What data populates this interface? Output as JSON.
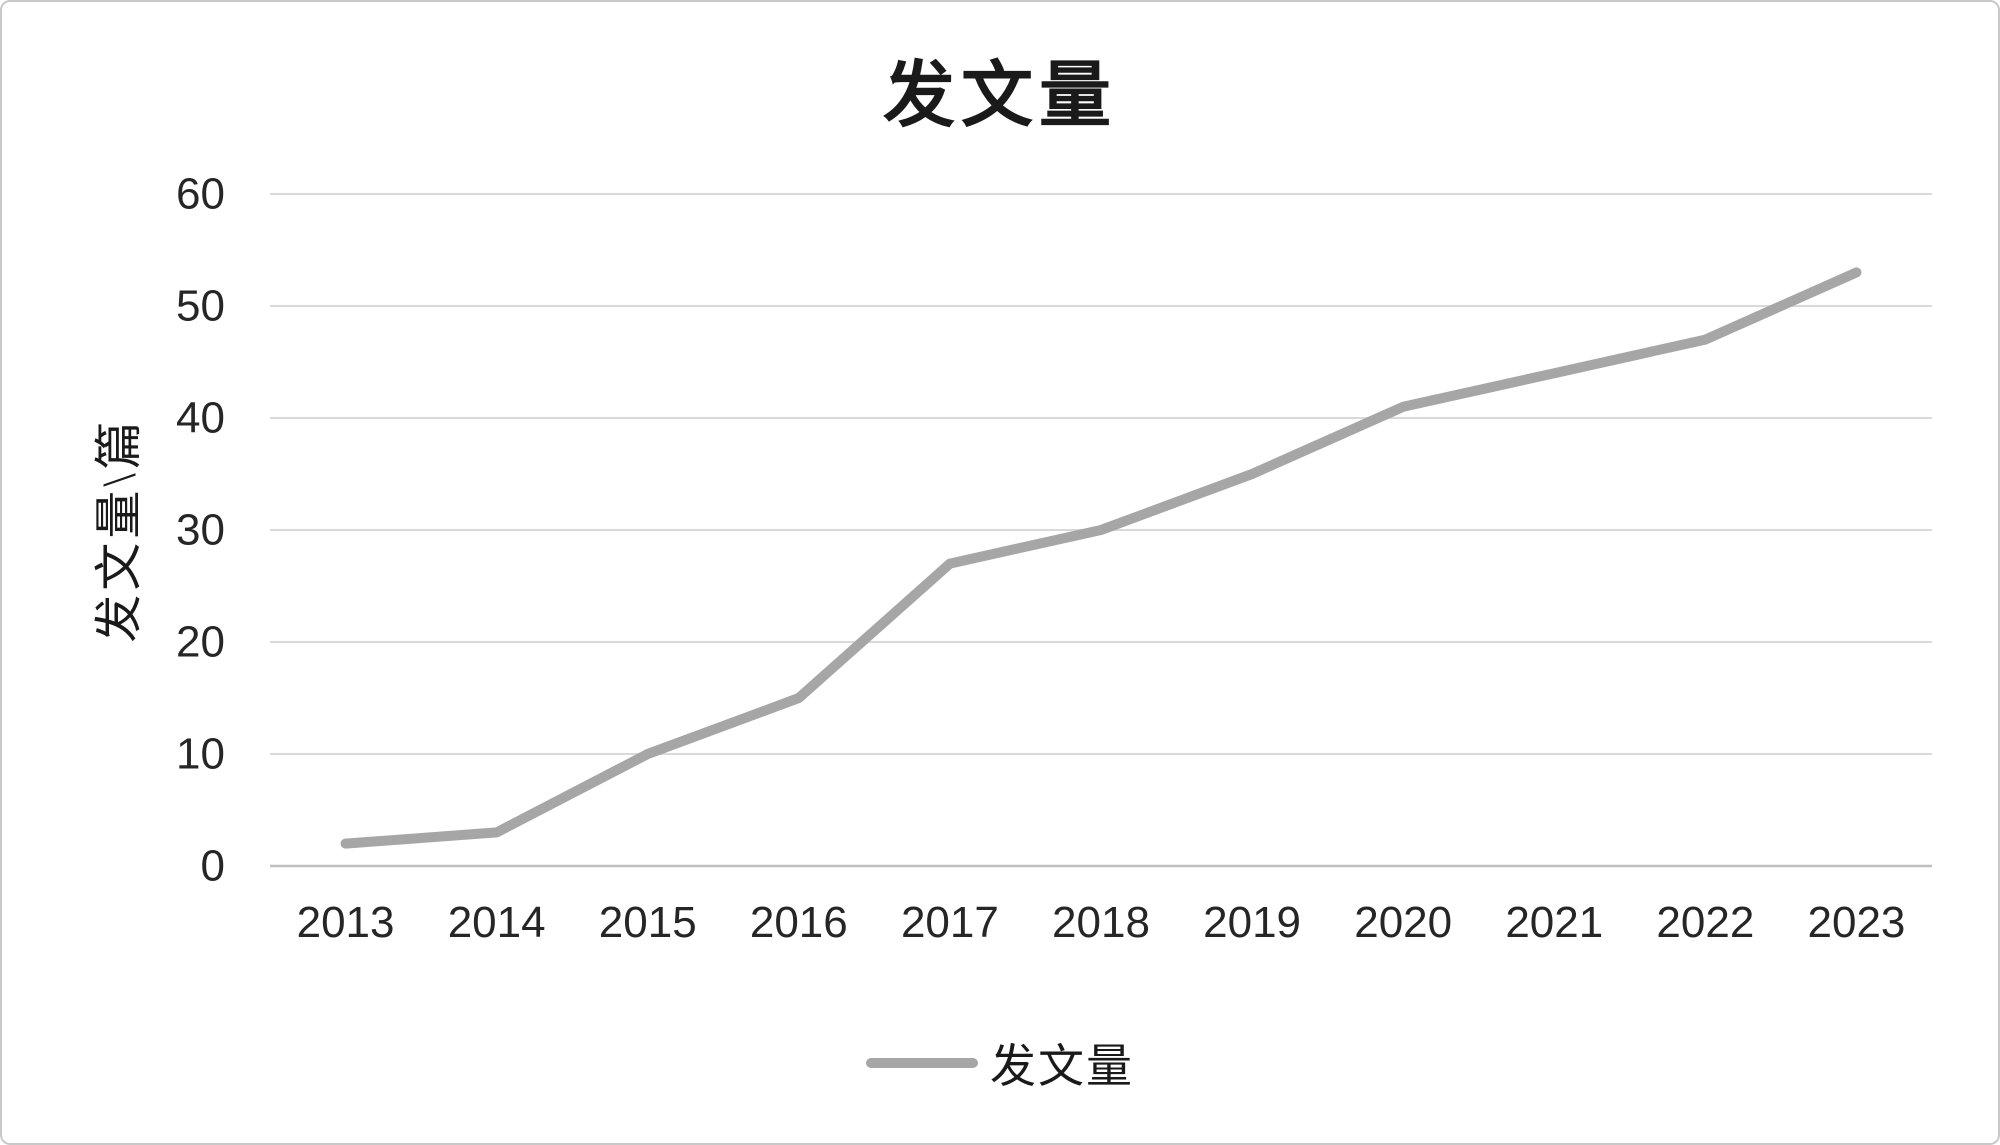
{
  "chart_data": {
    "type": "line",
    "title": "发文量",
    "ylabel": "发文量\\篇",
    "xlabel": "",
    "categories": [
      "2013",
      "2014",
      "2015",
      "2016",
      "2017",
      "2018",
      "2019",
      "2020",
      "2021",
      "2022",
      "2023"
    ],
    "series": [
      {
        "name": "发文量",
        "values": [
          2,
          3,
          10,
          15,
          27,
          30,
          35,
          41,
          44,
          47,
          53
        ]
      }
    ],
    "ylim": [
      0,
      60
    ],
    "yticks": [
      0,
      10,
      20,
      30,
      40,
      50,
      60
    ],
    "grid": true,
    "legend_position": "bottom",
    "line_color": "#a6a6a6",
    "gridline_color": "#d9d9d9",
    "axis_line_color": "#bfbfbf",
    "text_color": "#262626"
  }
}
